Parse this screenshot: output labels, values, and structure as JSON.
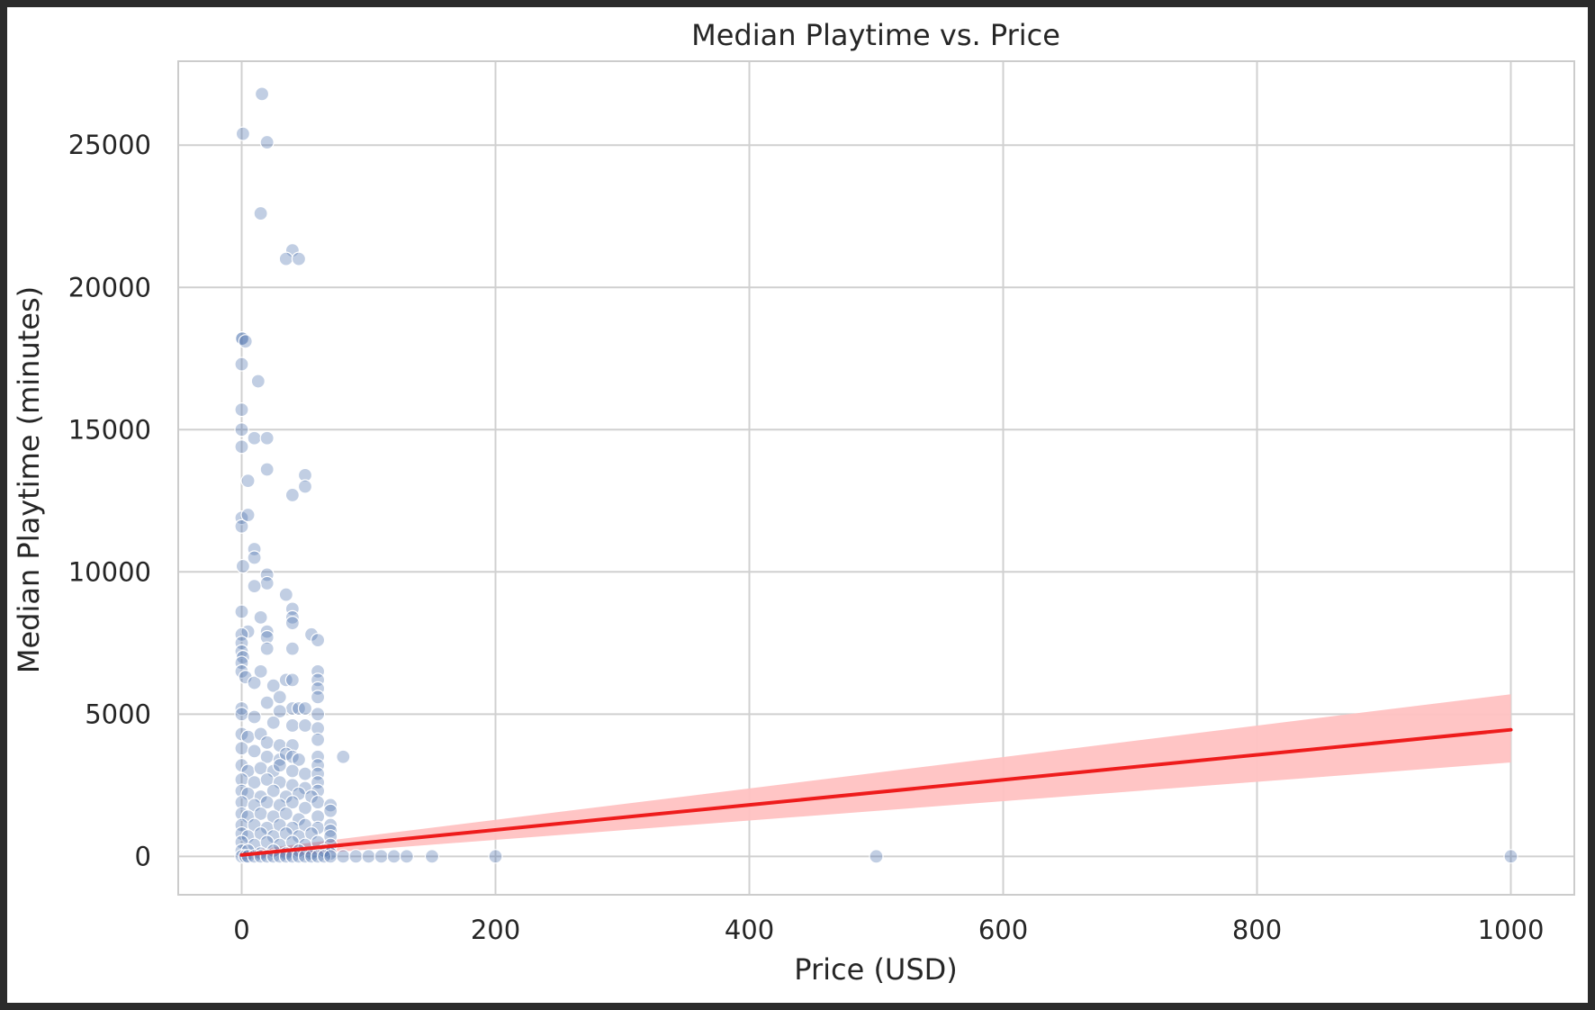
{
  "chart_data": {
    "type": "scatter",
    "title": "Median Playtime vs. Price",
    "xlabel": "Price (USD)",
    "ylabel": "Median Playtime (minutes)",
    "xlim": [
      -50,
      1050
    ],
    "ylim": [
      -1350,
      27950
    ],
    "xticks": [
      0,
      200,
      400,
      600,
      800,
      1000
    ],
    "yticks": [
      0,
      5000,
      10000,
      15000,
      20000,
      25000
    ],
    "grid": true,
    "colors": {
      "points": "#4c72b0",
      "regression_line": "#ee1c1c",
      "confidence_band": "#ffc2c2",
      "grid": "#d0d0d0",
      "background": "#ffffff",
      "frame": "#2b2b2b"
    },
    "points": [
      [
        15.99,
        26800
      ],
      [
        0.99,
        25400
      ],
      [
        19.99,
        25100
      ],
      [
        14.99,
        22600
      ],
      [
        39.99,
        21300
      ],
      [
        34.99,
        21000
      ],
      [
        44.99,
        21000
      ],
      [
        0,
        18200
      ],
      [
        0.5,
        18200
      ],
      [
        2.99,
        18100
      ],
      [
        0,
        17300
      ],
      [
        12.99,
        16700
      ],
      [
        0,
        15700
      ],
      [
        0,
        15000
      ],
      [
        0,
        14400
      ],
      [
        9.99,
        14700
      ],
      [
        19.99,
        14700
      ],
      [
        19.99,
        13600
      ],
      [
        49.99,
        13400
      ],
      [
        4.99,
        13200
      ],
      [
        49.99,
        13000
      ],
      [
        39.99,
        12700
      ],
      [
        0,
        11900
      ],
      [
        0,
        11600
      ],
      [
        4.99,
        12000
      ],
      [
        9.99,
        10800
      ],
      [
        9.99,
        10500
      ],
      [
        0.99,
        10200
      ],
      [
        19.99,
        9900
      ],
      [
        19.99,
        9600
      ],
      [
        9.99,
        9500
      ],
      [
        34.99,
        9200
      ],
      [
        39.99,
        8700
      ],
      [
        39.99,
        8400
      ],
      [
        39.99,
        8200
      ],
      [
        0,
        8600
      ],
      [
        14.99,
        8400
      ],
      [
        19.99,
        7900
      ],
      [
        19.99,
        7700
      ],
      [
        4.99,
        7900
      ],
      [
        0,
        7800
      ],
      [
        0,
        7500
      ],
      [
        0,
        7200
      ],
      [
        0.99,
        7000
      ],
      [
        0,
        6800
      ],
      [
        0,
        6500
      ],
      [
        2.99,
        6300
      ],
      [
        54.99,
        7800
      ],
      [
        59.99,
        7600
      ],
      [
        39.99,
        7300
      ],
      [
        19.99,
        7300
      ],
      [
        59.99,
        6500
      ],
      [
        59.99,
        6200
      ],
      [
        59.99,
        5900
      ],
      [
        59.99,
        5600
      ],
      [
        34.99,
        6200
      ],
      [
        39.99,
        6200
      ],
      [
        24.99,
        6000
      ],
      [
        9.99,
        6100
      ],
      [
        14.99,
        6500
      ],
      [
        29.99,
        5600
      ],
      [
        19.99,
        5400
      ],
      [
        0,
        5200
      ],
      [
        0,
        5000
      ],
      [
        39.99,
        5200
      ],
      [
        44.99,
        5200
      ],
      [
        49.99,
        5200
      ],
      [
        9.99,
        4900
      ],
      [
        29.99,
        5100
      ],
      [
        59.99,
        5000
      ],
      [
        24.99,
        4700
      ],
      [
        39.99,
        4600
      ],
      [
        49.99,
        4600
      ],
      [
        59.99,
        4500
      ],
      [
        0,
        4300
      ],
      [
        4.99,
        4200
      ],
      [
        14.99,
        4300
      ],
      [
        19.99,
        4000
      ],
      [
        29.99,
        3900
      ],
      [
        39.99,
        3900
      ],
      [
        59.99,
        4100
      ],
      [
        0,
        3800
      ],
      [
        9.99,
        3700
      ],
      [
        19.99,
        3500
      ],
      [
        29.99,
        3400
      ],
      [
        34.99,
        3600
      ],
      [
        39.99,
        3500
      ],
      [
        44.99,
        3400
      ],
      [
        59.99,
        3500
      ],
      [
        59.99,
        3200
      ],
      [
        79.99,
        3500
      ],
      [
        0,
        3200
      ],
      [
        4.99,
        3000
      ],
      [
        14.99,
        3100
      ],
      [
        24.99,
        3000
      ],
      [
        29.99,
        3200
      ],
      [
        39.99,
        3000
      ],
      [
        49.99,
        2900
      ],
      [
        59.99,
        2900
      ],
      [
        0,
        2700
      ],
      [
        9.99,
        2600
      ],
      [
        19.99,
        2700
      ],
      [
        29.99,
        2600
      ],
      [
        39.99,
        2500
      ],
      [
        49.99,
        2400
      ],
      [
        59.99,
        2600
      ],
      [
        59.99,
        2300
      ],
      [
        0,
        2300
      ],
      [
        4.99,
        2200
      ],
      [
        14.99,
        2100
      ],
      [
        24.99,
        2300
      ],
      [
        34.99,
        2100
      ],
      [
        44.99,
        2200
      ],
      [
        54.99,
        2100
      ],
      [
        0,
        1900
      ],
      [
        9.99,
        1800
      ],
      [
        19.99,
        1900
      ],
      [
        29.99,
        1800
      ],
      [
        39.99,
        1900
      ],
      [
        49.99,
        1700
      ],
      [
        59.99,
        1900
      ],
      [
        69.99,
        1800
      ],
      [
        69.99,
        1600
      ],
      [
        0,
        1500
      ],
      [
        4.99,
        1400
      ],
      [
        14.99,
        1500
      ],
      [
        24.99,
        1400
      ],
      [
        34.99,
        1500
      ],
      [
        44.99,
        1300
      ],
      [
        59.99,
        1400
      ],
      [
        0,
        1100
      ],
      [
        9.99,
        1100
      ],
      [
        19.99,
        1000
      ],
      [
        29.99,
        1100
      ],
      [
        39.99,
        1000
      ],
      [
        49.99,
        1100
      ],
      [
        59.99,
        1000
      ],
      [
        69.99,
        1100
      ],
      [
        69.99,
        900
      ],
      [
        0,
        800
      ],
      [
        4.99,
        700
      ],
      [
        14.99,
        800
      ],
      [
        24.99,
        700
      ],
      [
        34.99,
        800
      ],
      [
        44.99,
        700
      ],
      [
        54.99,
        800
      ],
      [
        69.99,
        700
      ],
      [
        0,
        500
      ],
      [
        9.99,
        400
      ],
      [
        19.99,
        500
      ],
      [
        29.99,
        400
      ],
      [
        39.99,
        500
      ],
      [
        49.99,
        400
      ],
      [
        59.99,
        500
      ],
      [
        69.99,
        400
      ],
      [
        0,
        200
      ],
      [
        4.99,
        200
      ],
      [
        14.99,
        100
      ],
      [
        24.99,
        200
      ],
      [
        34.99,
        100
      ],
      [
        44.99,
        200
      ],
      [
        54.99,
        100
      ],
      [
        64.99,
        200
      ],
      [
        69.99,
        100
      ],
      [
        0,
        0
      ],
      [
        2.99,
        0
      ],
      [
        4.99,
        0
      ],
      [
        9.99,
        0
      ],
      [
        14.99,
        0
      ],
      [
        19.99,
        0
      ],
      [
        24.99,
        0
      ],
      [
        29.99,
        0
      ],
      [
        34.99,
        0
      ],
      [
        39.99,
        0
      ],
      [
        44.99,
        0
      ],
      [
        49.99,
        0
      ],
      [
        54.99,
        0
      ],
      [
        59.99,
        0
      ],
      [
        64.99,
        0
      ],
      [
        69.99,
        0
      ],
      [
        79.99,
        0
      ],
      [
        89.99,
        0
      ],
      [
        99.99,
        0
      ],
      [
        109.99,
        0
      ],
      [
        119.99,
        0
      ],
      [
        129.99,
        0
      ],
      [
        149.99,
        0
      ],
      [
        199.99,
        0
      ],
      [
        499.99,
        0
      ],
      [
        999.99,
        0
      ]
    ],
    "regression_line": {
      "x": [
        0,
        1000
      ],
      "y": [
        50,
        4450
      ]
    },
    "confidence_band": {
      "x": [
        0,
        1000
      ],
      "lower": [
        -100,
        3300
      ],
      "upper": [
        180,
        5700
      ]
    }
  }
}
